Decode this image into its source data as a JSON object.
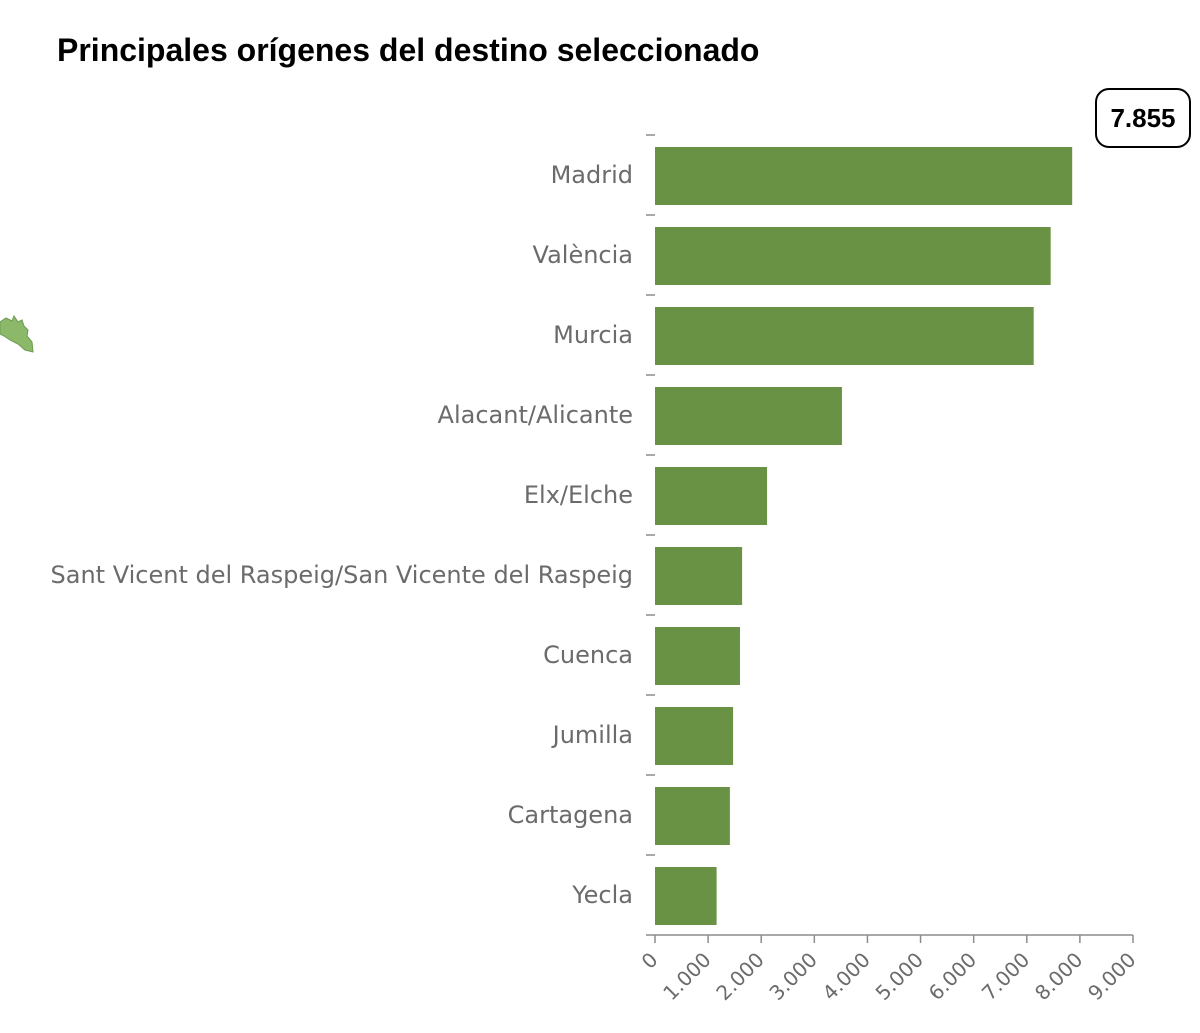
{
  "chart_data": {
    "type": "bar",
    "orientation": "horizontal",
    "title": "Principales orígenes del destino seleccionado",
    "categories": [
      "Madrid",
      "València",
      "Murcia",
      "Alacant/Alicante",
      "Elx/Elche",
      "Sant Vicent del Raspeig/San Vicente del Raspeig",
      "Cuenca",
      "Jumilla",
      "Cartagena",
      "Yecla"
    ],
    "values": [
      7855,
      7450,
      7130,
      3520,
      2110,
      1640,
      1600,
      1470,
      1410,
      1160
    ],
    "xlim": [
      0,
      9000
    ],
    "tick_values": [
      0,
      1000,
      2000,
      3000,
      4000,
      5000,
      6000,
      7000,
      8000,
      9000
    ],
    "tick_labels": [
      "0",
      "1.000",
      "2.000",
      "3.000",
      "4.000",
      "5.000",
      "6.000",
      "7.000",
      "8.000",
      "9.000"
    ],
    "bar_color": "#6a9245",
    "grid": false,
    "tooltip": {
      "category": "Madrid",
      "text": "7.855"
    }
  },
  "decor": {
    "map_fragment_color": "#8cb86a"
  }
}
